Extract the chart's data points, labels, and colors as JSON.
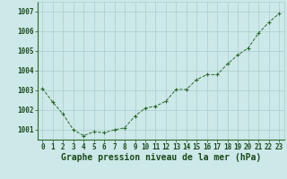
{
  "x": [
    0,
    1,
    2,
    3,
    4,
    5,
    6,
    7,
    8,
    9,
    10,
    11,
    12,
    13,
    14,
    15,
    16,
    17,
    18,
    19,
    20,
    21,
    22,
    23
  ],
  "y": [
    1003.1,
    1002.4,
    1001.8,
    1001.0,
    1000.7,
    1000.9,
    1000.85,
    1001.0,
    1001.1,
    1001.7,
    1002.1,
    1002.2,
    1002.45,
    1003.05,
    1003.05,
    1003.55,
    1003.8,
    1003.8,
    1004.35,
    1004.8,
    1005.15,
    1005.9,
    1006.45,
    1006.9
  ],
  "ylim": [
    1000.5,
    1007.5
  ],
  "yticks": [
    1001,
    1002,
    1003,
    1004,
    1005,
    1006,
    1007
  ],
  "xticks": [
    0,
    1,
    2,
    3,
    4,
    5,
    6,
    7,
    8,
    9,
    10,
    11,
    12,
    13,
    14,
    15,
    16,
    17,
    18,
    19,
    20,
    21,
    22,
    23
  ],
  "line_color": "#2d6a2d",
  "marker_color": "#2d6a2d",
  "bg_color": "#cce8e8",
  "grid_color_major": "#aacece",
  "grid_color_minor": "#c4e0e0",
  "xlabel": "Graphe pression niveau de la mer (hPa)",
  "xlabel_color": "#1a4a1a",
  "tick_color": "#1a4a1a",
  "axis_label_fontsize": 7.0,
  "tick_fontsize": 5.5
}
